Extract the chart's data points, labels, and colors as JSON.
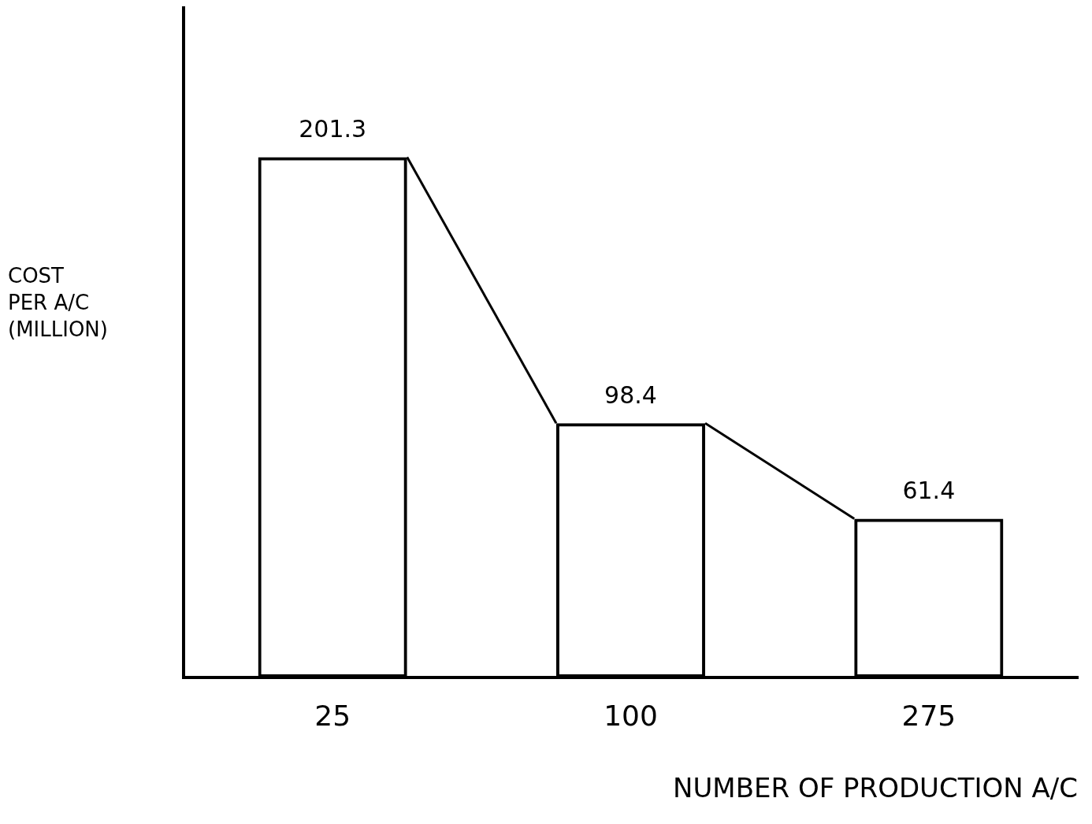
{
  "chart_data": {
    "type": "bar",
    "xlabel": "NUMBER OF PRODUCTION A/C",
    "ylabel": "COST\nPER A/C\n(MILLION)",
    "categories": [
      "25",
      "100",
      "275"
    ],
    "values": [
      201.3,
      98.4,
      61.4
    ],
    "color": "#000000",
    "data_labels": true,
    "grid": false,
    "legend": false
  }
}
